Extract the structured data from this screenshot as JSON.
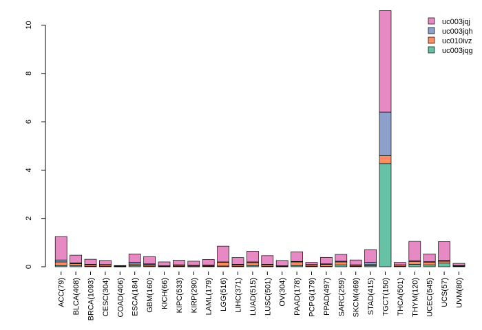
{
  "chart_data": {
    "type": "bar",
    "stacked": true,
    "title": "",
    "xlabel": "",
    "ylabel": "",
    "ylim": [
      0,
      10.6
    ],
    "yticks": [
      0,
      2,
      4,
      6,
      8,
      10
    ],
    "grid": false,
    "legend_position": "top-right",
    "categories": [
      "ACC(79)",
      "BLCA(408)",
      "BRCA(1093)",
      "CESC(304)",
      "COAD(406)",
      "ESCA(184)",
      "GBM(160)",
      "KICH(66)",
      "KIPC(533)",
      "KIRP(290)",
      "LAML(179)",
      "LGG(516)",
      "LIHC(371)",
      "LUAD(515)",
      "LUSC(501)",
      "OV(304)",
      "PAAD(178)",
      "PCPG(179)",
      "PPAD(497)",
      "SARC(259)",
      "SKCM(469)",
      "STAD(415)",
      "TGCT(150)",
      "THCA(501)",
      "THYM(120)",
      "UCEC(545)",
      "UCS(57)",
      "UVM(80)"
    ],
    "series": [
      {
        "name": "uc003jqg",
        "color": "#66c2a5",
        "values": [
          0.05,
          0.05,
          0.02,
          0.02,
          0.01,
          0.05,
          0.03,
          0.01,
          0.02,
          0.01,
          0.02,
          0.03,
          0.02,
          0.05,
          0.02,
          0.01,
          0.05,
          0.02,
          0.02,
          0.08,
          0.02,
          0.05,
          4.27,
          0.02,
          0.1,
          0.08,
          0.15,
          0.02
        ]
      },
      {
        "name": "uc010ivz",
        "color": "#fc8d62",
        "values": [
          0.15,
          0.08,
          0.06,
          0.05,
          0.01,
          0.06,
          0.06,
          0.02,
          0.04,
          0.04,
          0.03,
          0.15,
          0.05,
          0.12,
          0.06,
          0.02,
          0.15,
          0.05,
          0.08,
          0.12,
          0.04,
          0.04,
          0.33,
          0.05,
          0.12,
          0.1,
          0.08,
          0.02
        ]
      },
      {
        "name": "uc003jqh",
        "color": "#8da0cb",
        "values": [
          0.08,
          0.03,
          0.02,
          0.02,
          0.01,
          0.08,
          0.03,
          0.01,
          0.02,
          0.01,
          0.02,
          0.02,
          0.03,
          0.03,
          0.02,
          0.01,
          0.02,
          0.02,
          0.02,
          0.03,
          0.02,
          0.1,
          1.8,
          0.01,
          0.03,
          0.03,
          0.03,
          0.01
        ]
      },
      {
        "name": "uc003jqj",
        "color": "#e78ac3",
        "values": [
          0.97,
          0.32,
          0.21,
          0.17,
          0.02,
          0.34,
          0.3,
          0.16,
          0.19,
          0.17,
          0.23,
          0.65,
          0.28,
          0.44,
          0.36,
          0.22,
          0.4,
          0.09,
          0.27,
          0.28,
          0.2,
          0.52,
          4.2,
          0.1,
          0.8,
          0.32,
          0.78,
          0.09
        ]
      }
    ]
  }
}
